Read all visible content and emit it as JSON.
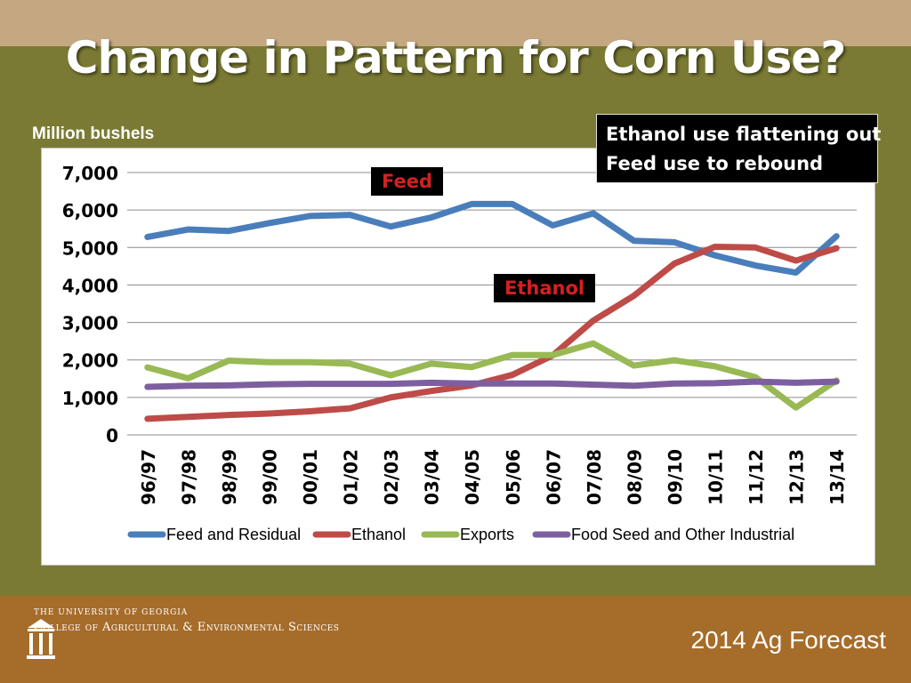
{
  "slide": {
    "title": "Change in Pattern for Corn Use?",
    "unit_label": "Million bushels",
    "callout_lines": [
      "Ethanol use flattening out",
      "Feed use to rebound"
    ],
    "tag_feed": "Feed",
    "tag_ethanol": "Ethanol"
  },
  "footer": {
    "university": "THE UNIVERSITY OF GEORGIA",
    "college": "College of Agricultural & Environmental Sciences",
    "forecast": "2014 Ag Forecast"
  },
  "colors": {
    "feed": "#4a7ebb",
    "ethanol": "#be4b48",
    "exports": "#98b954",
    "food": "#7d5fa0"
  },
  "chart_data": {
    "type": "line",
    "title": "",
    "xlabel": "",
    "ylabel": "Million bushels",
    "ylim": [
      0,
      7000
    ],
    "yticks": [
      0,
      1000,
      2000,
      3000,
      4000,
      5000,
      6000,
      7000
    ],
    "ytick_labels": [
      "0",
      "1,000",
      "2,000",
      "3,000",
      "4,000",
      "5,000",
      "6,000",
      "7,000"
    ],
    "grid": true,
    "legend": "bottom",
    "categories": [
      "96/97",
      "97/98",
      "98/99",
      "99/00",
      "00/01",
      "01/02",
      "02/03",
      "03/04",
      "04/05",
      "05/06",
      "06/07",
      "07/08",
      "08/09",
      "09/10",
      "10/11",
      "11/12",
      "12/13",
      "13/14"
    ],
    "series": [
      {
        "name": "Feed and Residual",
        "color": "#4a7ebb",
        "values": [
          5280,
          5480,
          5440,
          5650,
          5840,
          5870,
          5560,
          5800,
          6160,
          6160,
          5590,
          5910,
          5180,
          5140,
          4790,
          4520,
          4330,
          5300
        ]
      },
      {
        "name": "Ethanol",
        "color": "#be4b48",
        "values": [
          430,
          480,
          530,
          570,
          630,
          710,
          1000,
          1170,
          1320,
          1600,
          2120,
          3050,
          3710,
          4570,
          5020,
          5000,
          4650,
          4980
        ]
      },
      {
        "name": "Exports",
        "color": "#98b954",
        "values": [
          1800,
          1510,
          1980,
          1940,
          1940,
          1900,
          1590,
          1900,
          1810,
          2130,
          2130,
          2440,
          1850,
          1990,
          1830,
          1540,
          730,
          1450
        ]
      },
      {
        "name": "Food Seed and Other Industrial",
        "color": "#7d5fa0",
        "values": [
          1280,
          1310,
          1320,
          1350,
          1360,
          1360,
          1360,
          1390,
          1370,
          1370,
          1370,
          1340,
          1310,
          1370,
          1380,
          1420,
          1390,
          1420
        ]
      }
    ]
  }
}
